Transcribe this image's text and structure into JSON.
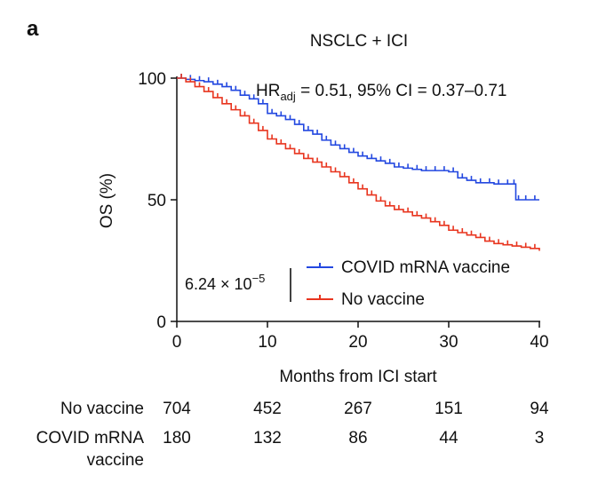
{
  "panel_label": "a",
  "chart_data": {
    "type": "line",
    "title": "NSCLC + ICI",
    "xlabel": "Months from ICI start",
    "ylabel": "OS (%)",
    "xlim": [
      0,
      40
    ],
    "ylim": [
      0,
      100
    ],
    "xticks": [
      "0",
      "10",
      "20",
      "30",
      "40"
    ],
    "yticks": [
      "0",
      "50",
      "100"
    ],
    "xtick_values": [
      0,
      10,
      20,
      30,
      40
    ],
    "ytick_values": [
      0,
      50,
      100
    ],
    "annotation_hr_prefix": "HR",
    "annotation_hr_sub": "adj",
    "annotation_hr_rest": " = 0.51, 95% CI = 0.37–0.71",
    "pvalue_base": "6.24 × 10",
    "pvalue_exp": "−5",
    "legend_position": "bottom-right",
    "series": [
      {
        "name": "COVID mRNA vaccine",
        "color": "#2348e0",
        "x": [
          0,
          1,
          2,
          3,
          4,
          5,
          6,
          7,
          8,
          9,
          10,
          11,
          12,
          13,
          14,
          15,
          16,
          17,
          18,
          19,
          20,
          21,
          22,
          23,
          24,
          25,
          26,
          27,
          28,
          29,
          30,
          31,
          32,
          33,
          34,
          35,
          36,
          37,
          37.4,
          38,
          39,
          40
        ],
        "y": [
          100,
          99.5,
          99,
          98.5,
          97.5,
          96.5,
          95,
          93,
          91.5,
          89.5,
          85.5,
          84.5,
          83,
          81,
          78.5,
          77,
          74.5,
          72.5,
          71,
          69.5,
          68,
          67,
          66,
          65,
          63.5,
          63,
          62.5,
          62,
          62,
          62,
          61.5,
          59,
          58,
          57,
          57,
          56.5,
          56.5,
          56.5,
          50,
          50,
          50,
          50
        ]
      },
      {
        "name": "No vaccine",
        "color": "#e8351f",
        "x": [
          0,
          1,
          2,
          3,
          4,
          5,
          6,
          7,
          8,
          9,
          10,
          11,
          12,
          13,
          14,
          15,
          16,
          17,
          18,
          19,
          20,
          21,
          22,
          23,
          24,
          25,
          26,
          27,
          28,
          29,
          30,
          31,
          32,
          33,
          34,
          35,
          36,
          37,
          38,
          39,
          40
        ],
        "y": [
          100,
          98.5,
          96.5,
          94.5,
          92,
          89.5,
          87,
          84.5,
          81.5,
          78.5,
          75,
          73,
          71,
          69,
          67,
          65.5,
          63.5,
          61.5,
          59.5,
          57,
          54.5,
          52,
          49.5,
          47.5,
          46,
          45,
          43.5,
          42.5,
          41,
          39.5,
          37.5,
          36.5,
          35.5,
          34.5,
          33,
          32,
          31.5,
          31,
          30.5,
          30,
          29
        ]
      }
    ],
    "risk_table": {
      "rows": [
        {
          "label": "No vaccine",
          "values": [
            "704",
            "452",
            "267",
            "151",
            "94"
          ]
        },
        {
          "label_line1": "COVID mRNA",
          "label_line2": "vaccine",
          "values": [
            "180",
            "132",
            "86",
            "44",
            "3"
          ]
        }
      ]
    }
  }
}
